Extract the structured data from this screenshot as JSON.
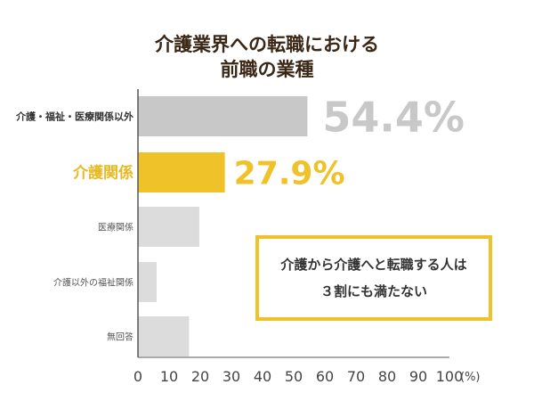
{
  "chart_data": {
    "type": "bar",
    "orientation": "horizontal",
    "title": [
      "介護業界への転職における",
      "前職の業種"
    ],
    "categories": [
      "介護・福祉・医療関係以外",
      "介護関係",
      "医療関係",
      "介護以外の福祉関係",
      "無回答"
    ],
    "values": [
      54.4,
      27.9,
      19.7,
      6.0,
      16.4
    ],
    "data_labels": [
      "54.4%",
      "27.9%",
      "",
      "",
      ""
    ],
    "xlim": [
      0,
      100
    ],
    "xticks": [
      0,
      10,
      20,
      30,
      40,
      50,
      60,
      70,
      80,
      90,
      100
    ],
    "xunit": "(%)",
    "grid": false,
    "colors": [
      "#c8c8c8",
      "#f0c22a",
      "#dcdcdc",
      "#dcdcdc",
      "#dcdcdc"
    ],
    "label_colors": [
      "#333333",
      "#e8b923",
      "#555555",
      "#555555",
      "#555555"
    ],
    "value_label_colors": [
      "#c8c8c8",
      "#f0c22a"
    ]
  },
  "callout": {
    "line1": "介護から介護へと転職する人は",
    "line2": "３割にも満たない"
  }
}
